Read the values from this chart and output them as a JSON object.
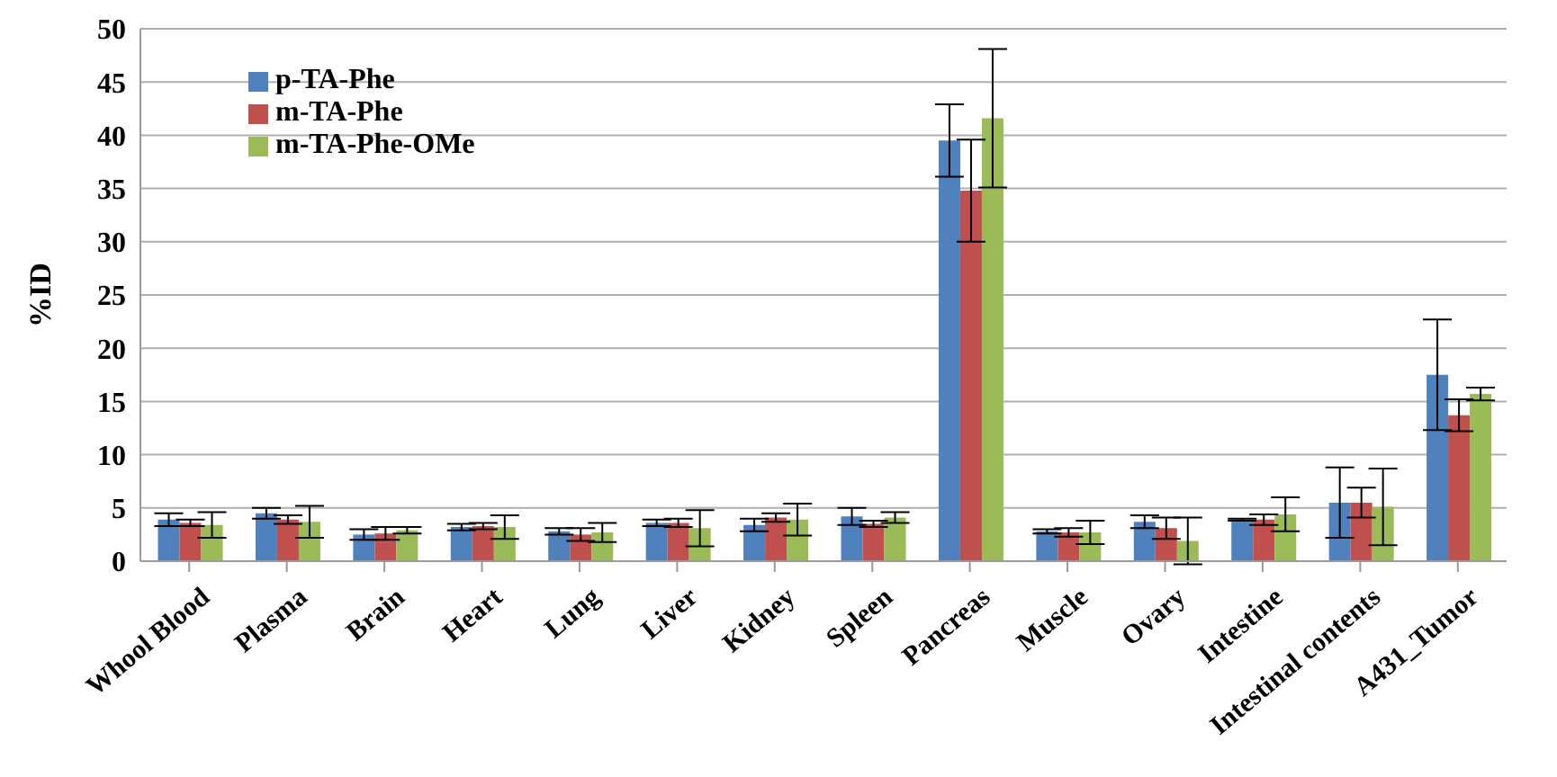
{
  "chart_data": {
    "type": "bar",
    "ylabel": "%ID",
    "categories": [
      "Whool Blood",
      "Plasma",
      "Brain",
      "Heart",
      "Lung",
      "Liver",
      "Kidney",
      "Spleen",
      "Pancreas",
      "Muscle",
      "Ovary",
      "Intestine",
      "Intestinal contents",
      "A431_Tumor"
    ],
    "series": [
      {
        "name": "p-TA-Phe",
        "color": "#4f81bd",
        "values": [
          3.9,
          4.5,
          2.5,
          3.2,
          2.8,
          3.6,
          3.4,
          4.2,
          39.5,
          2.8,
          3.7,
          3.9,
          5.5,
          17.5
        ],
        "errors": [
          0.6,
          0.5,
          0.5,
          0.3,
          0.3,
          0.3,
          0.6,
          0.8,
          3.4,
          0.2,
          0.6,
          0.1,
          3.3,
          5.2
        ]
      },
      {
        "name": "m-TA-Phe",
        "color": "#c0504d",
        "values": [
          3.6,
          3.9,
          2.6,
          3.3,
          2.5,
          3.6,
          4.1,
          3.5,
          34.8,
          2.7,
          3.1,
          3.9,
          5.5,
          13.7
        ],
        "errors": [
          0.3,
          0.4,
          0.6,
          0.3,
          0.6,
          0.4,
          0.4,
          0.3,
          4.8,
          0.4,
          1.0,
          0.5,
          1.4,
          1.5
        ]
      },
      {
        "name": "m-TA-Phe-OMe",
        "color": "#9bbb59",
        "values": [
          3.4,
          3.7,
          2.9,
          3.2,
          2.7,
          3.1,
          3.9,
          4.1,
          41.6,
          2.7,
          1.9,
          4.4,
          5.1,
          15.7
        ],
        "errors": [
          1.2,
          1.5,
          0.3,
          1.1,
          0.9,
          1.7,
          1.5,
          0.5,
          6.5,
          1.1,
          2.2,
          1.6,
          3.6,
          0.6
        ]
      }
    ],
    "ylim": [
      0,
      50
    ],
    "yticks": [
      0,
      5,
      10,
      15,
      20,
      25,
      30,
      35,
      40,
      45,
      50
    ],
    "grid": "y",
    "legend": "top left"
  }
}
